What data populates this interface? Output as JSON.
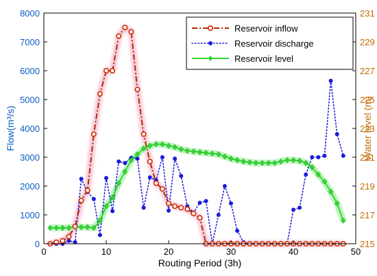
{
  "chart_data": {
    "type": "line",
    "xlabel": "Routing Period (3h)",
    "ylabel_left": "Flow(m³/s)",
    "ylabel_right": "Water level (m)",
    "xlim": [
      0,
      50
    ],
    "ylim_left": [
      0,
      8000
    ],
    "ylim_right": [
      215,
      231
    ],
    "xticks": [
      0,
      10,
      20,
      30,
      40,
      50
    ],
    "yticks_left": [
      0,
      1000,
      2000,
      3000,
      4000,
      5000,
      6000,
      7000,
      8000
    ],
    "yticks_right": [
      215,
      217,
      219,
      221,
      223,
      225,
      227,
      229,
      231
    ],
    "legend_position": "top-right",
    "grid": false,
    "colors": {
      "left_axis": "#0b5cc4",
      "right_axis": "#c36a00",
      "inflow": "#b22a00",
      "inflow_glow": "#f6c6d6",
      "discharge": "#1a1adc",
      "level": "#33d633",
      "level_glow": "#bff5bf"
    },
    "series": [
      {
        "name": "Reservoir inflow",
        "axis": "left",
        "x": [
          1,
          2,
          3,
          4,
          5,
          6,
          7,
          8,
          9,
          10,
          11,
          12,
          13,
          14,
          15,
          16,
          17,
          18,
          19,
          20,
          21,
          22,
          23,
          24,
          25,
          26,
          27,
          28,
          29,
          30,
          31,
          32,
          33,
          34,
          35,
          36,
          37,
          38,
          39,
          40,
          41,
          42,
          43,
          44,
          45,
          46,
          47,
          48
        ],
        "values": [
          0,
          50,
          100,
          250,
          600,
          1500,
          1850,
          3800,
          5200,
          6000,
          6000,
          7200,
          7500,
          7350,
          5350,
          3800,
          2850,
          2100,
          1900,
          1400,
          1300,
          1250,
          1200,
          1050,
          900,
          0,
          0,
          0,
          0,
          0,
          0,
          0,
          0,
          0,
          0,
          0,
          0,
          0,
          0,
          0,
          0,
          0,
          0,
          0,
          0,
          0,
          0,
          0
        ]
      },
      {
        "name": "Reservoir discharge",
        "axis": "left",
        "x": [
          1,
          2,
          3,
          4,
          5,
          6,
          7,
          8,
          9,
          10,
          11,
          12,
          13,
          14,
          15,
          16,
          17,
          18,
          19,
          20,
          21,
          22,
          23,
          24,
          25,
          26,
          27,
          28,
          29,
          30,
          31,
          32,
          33,
          34,
          35,
          36,
          37,
          38,
          39,
          40,
          41,
          42,
          43,
          44,
          45,
          46,
          47,
          48
        ],
        "values": [
          0,
          0,
          0,
          100,
          50,
          2250,
          1800,
          1550,
          300,
          2280,
          1130,
          2850,
          2800,
          2980,
          2950,
          1250,
          2300,
          2200,
          3000,
          1150,
          2950,
          2350,
          1300,
          1080,
          1420,
          1480,
          0,
          1000,
          2000,
          1400,
          450,
          50,
          0,
          0,
          0,
          0,
          0,
          0,
          0,
          1180,
          1250,
          2400,
          3000,
          3000,
          3050,
          5650,
          3800,
          3050
        ]
      },
      {
        "name": "Reservoir level",
        "axis": "right",
        "x": [
          1,
          2,
          3,
          4,
          5,
          6,
          7,
          8,
          9,
          10,
          11,
          12,
          13,
          14,
          15,
          16,
          17,
          18,
          19,
          20,
          21,
          22,
          23,
          24,
          25,
          26,
          27,
          28,
          29,
          30,
          31,
          32,
          33,
          34,
          35,
          36,
          37,
          38,
          39,
          40,
          41,
          42,
          43,
          44,
          45,
          46,
          47,
          48
        ],
        "values": [
          216.1,
          216.1,
          216.1,
          216.1,
          216.2,
          216.15,
          216.15,
          216.1,
          216.6,
          217.6,
          218.2,
          219.2,
          220.0,
          220.8,
          221.2,
          221.6,
          221.8,
          221.9,
          221.9,
          221.8,
          221.7,
          221.55,
          221.45,
          221.4,
          221.35,
          221.3,
          221.25,
          221.2,
          221.05,
          220.9,
          220.8,
          220.7,
          220.65,
          220.6,
          220.6,
          220.6,
          220.6,
          220.7,
          220.8,
          220.8,
          220.75,
          220.6,
          220.3,
          219.8,
          219.3,
          218.6,
          217.8,
          216.6
        ]
      }
    ]
  }
}
